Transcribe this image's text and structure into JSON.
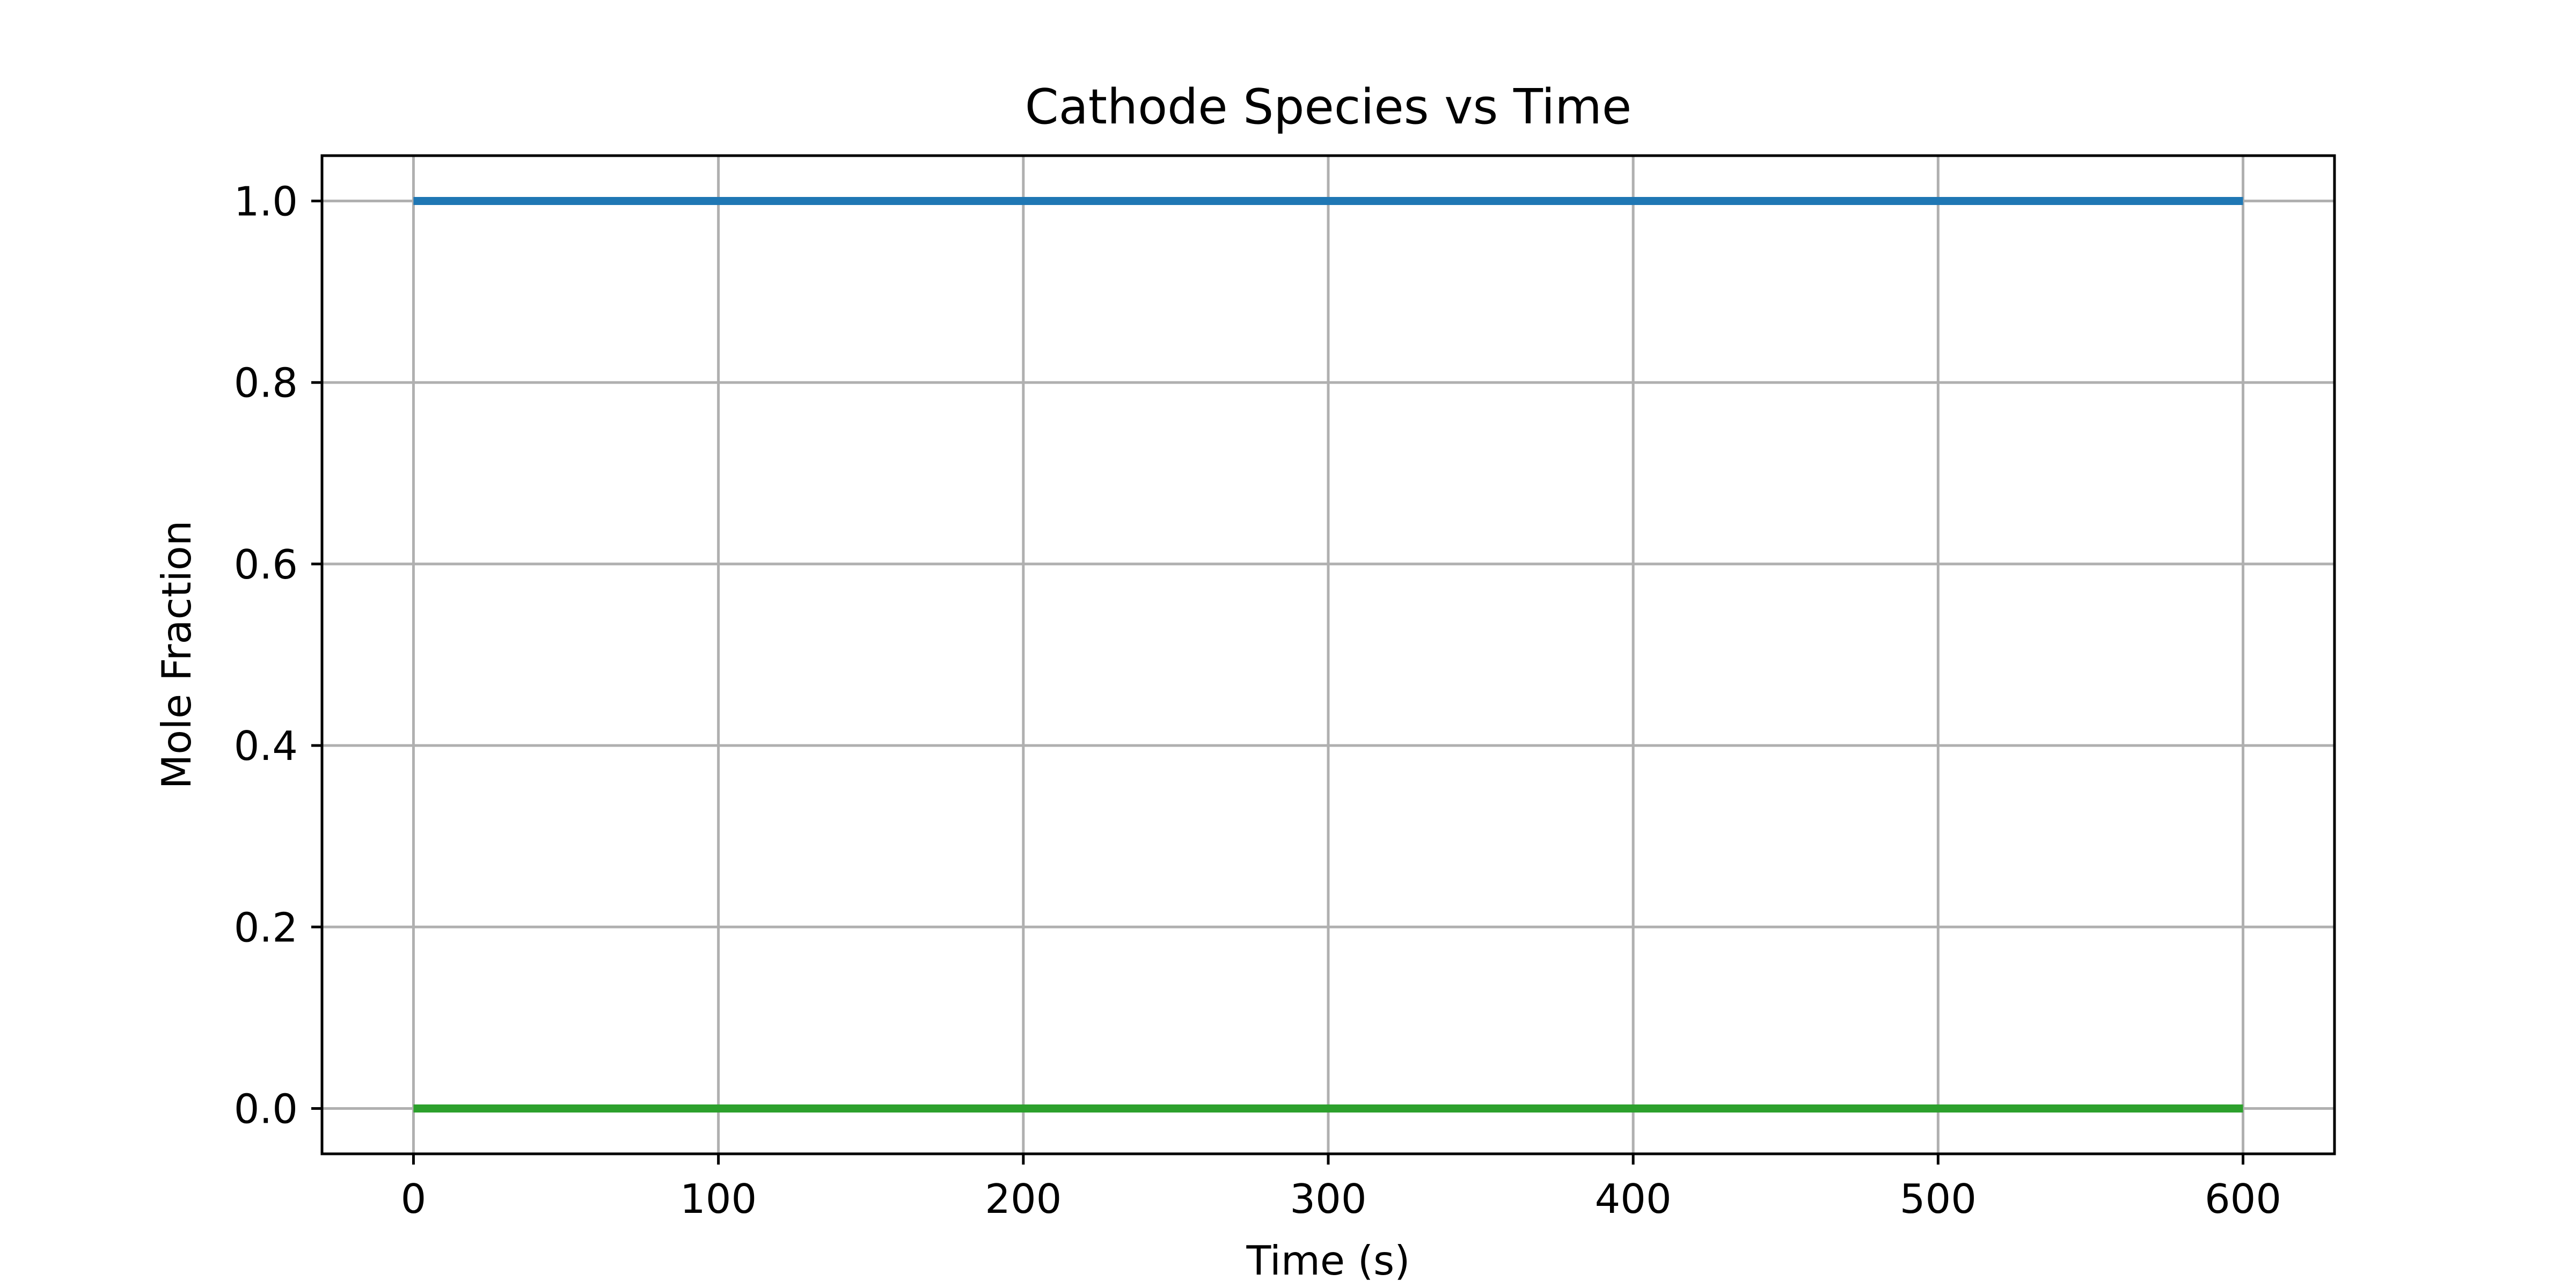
{
  "chart_data": {
    "type": "line",
    "title": "Cathode Species vs Time",
    "xlabel": "Time (s)",
    "ylabel": "Mole Fraction",
    "xlim": [
      -30,
      630
    ],
    "ylim": [
      -0.05,
      1.05
    ],
    "xticks": [
      0,
      100,
      200,
      300,
      400,
      500,
      600
    ],
    "yticks": [
      0.0,
      0.2,
      0.4,
      0.6,
      0.8,
      1.0
    ],
    "xtick_labels": [
      "0",
      "100",
      "200",
      "300",
      "400",
      "500",
      "600"
    ],
    "ytick_labels": [
      "0.0",
      "0.2",
      "0.4",
      "0.6",
      "0.8",
      "1.0"
    ],
    "grid": true,
    "legend": false,
    "series": [
      {
        "color": "#1f77b4",
        "x": [
          0,
          600
        ],
        "y": [
          1.0,
          1.0
        ]
      },
      {
        "color": "#2ca02c",
        "x": [
          0,
          600
        ],
        "y": [
          0.0,
          0.0
        ]
      }
    ]
  }
}
